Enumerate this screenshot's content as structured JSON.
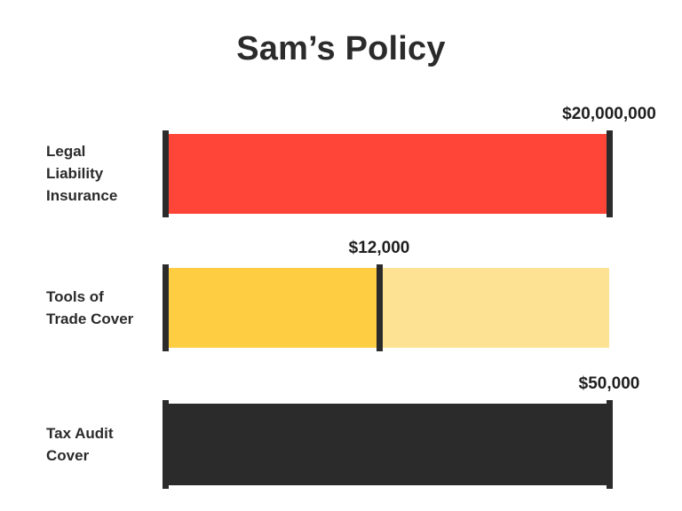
{
  "colors": {
    "red": "#ff4538",
    "yellow": "#fecd42",
    "yellow_light": "#fce292",
    "dark": "#2b2b2b"
  },
  "chart_data": {
    "type": "bar",
    "title": "Sam’s Policy",
    "orientation": "horizontal",
    "bars": [
      {
        "label": "Legal\nLiability\nInsurance",
        "value_label": "$20,000,000",
        "value": 20000000,
        "max": 20000000,
        "fraction": 1.0,
        "color": "#ff4538",
        "track_color": "#ff4538"
      },
      {
        "label": "Tools of\nTrade Cover",
        "value_label": "$12,000",
        "value": 12000,
        "fraction": 0.48,
        "color": "#fecd42",
        "track_color": "#fce292"
      },
      {
        "label": "Tax Audit\nCover",
        "value_label": "$50,000",
        "value": 50000,
        "max": 50000,
        "fraction": 1.0,
        "color": "#2b2b2b",
        "track_color": "#2b2b2b"
      }
    ]
  }
}
